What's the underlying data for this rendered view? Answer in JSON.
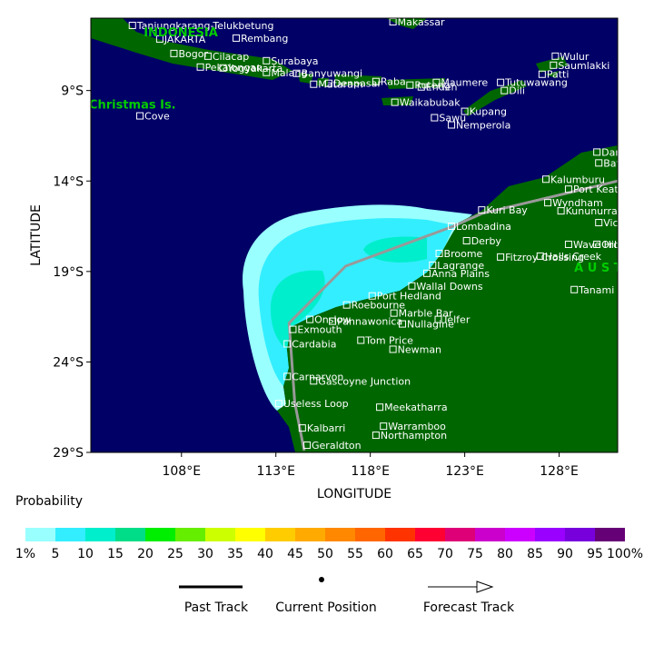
{
  "map": {
    "legend_title": "Probability",
    "xlabel": "LONGITUDE",
    "ylabel": "LATITUDE",
    "xlim": [
      103.2,
      131.1
    ],
    "ylim": [
      -29,
      -5
    ],
    "xticks": [
      {
        "value": 108,
        "label": "108°E"
      },
      {
        "value": 113,
        "label": "113°E"
      },
      {
        "value": 118,
        "label": "118°E"
      },
      {
        "value": 123,
        "label": "123°E"
      },
      {
        "value": 128,
        "label": "128°E"
      }
    ],
    "yticks": [
      {
        "value": -9,
        "label": "9°S"
      },
      {
        "value": -14,
        "label": "14°S"
      },
      {
        "value": -19,
        "label": "19°S"
      },
      {
        "value": -24,
        "label": "24°S"
      },
      {
        "value": -29,
        "label": "29°S"
      }
    ],
    "regions": [
      {
        "name": "Christmas Is.",
        "lon": 103.1,
        "lat": -10.0
      },
      {
        "name": "INDONESIA",
        "lon": 106.0,
        "lat": -6.0
      },
      {
        "name": "A U S T R A L I A",
        "lon": 128.8,
        "lat": -19.0
      }
    ],
    "places": [
      {
        "name": "Tanjungkarang-Telukbetung",
        "lon": 105.4,
        "lat": -5.4
      },
      {
        "name": "JAKARTA",
        "lon": 106.85,
        "lat": -6.15
      },
      {
        "name": "Bogor",
        "lon": 107.6,
        "lat": -6.95
      },
      {
        "name": "Rembang",
        "lon": 110.9,
        "lat": -6.1
      },
      {
        "name": "Cilacap",
        "lon": 109.4,
        "lat": -7.1
      },
      {
        "name": "Pekalongan",
        "lon": 109.0,
        "lat": -7.7
      },
      {
        "name": "Surabaya",
        "lon": 112.5,
        "lat": -7.35
      },
      {
        "name": "Malang",
        "lon": 112.5,
        "lat": -8.0
      },
      {
        "name": "Yogyakarta",
        "lon": 110.2,
        "lat": -7.75
      },
      {
        "name": "Banyuwangi",
        "lon": 114.1,
        "lat": -8.05
      },
      {
        "name": "Makassar",
        "lon": 119.2,
        "lat": -5.2
      },
      {
        "name": "Mataram",
        "lon": 115.0,
        "lat": -8.65
      },
      {
        "name": "Denpasar",
        "lon": 115.8,
        "lat": -8.6
      },
      {
        "name": "Raba",
        "lon": 118.3,
        "lat": -8.5
      },
      {
        "name": "Maumere",
        "lon": 121.5,
        "lat": -8.55
      },
      {
        "name": "Ruteng",
        "lon": 120.1,
        "lat": -8.7
      },
      {
        "name": "Endeh",
        "lon": 120.7,
        "lat": -8.8
      },
      {
        "name": "Waikabubak",
        "lon": 119.3,
        "lat": -9.65
      },
      {
        "name": "Sawu",
        "lon": 121.4,
        "lat": -10.5
      },
      {
        "name": "Kupang",
        "lon": 123.0,
        "lat": -10.15
      },
      {
        "name": "Nemperola",
        "lon": 122.3,
        "lat": -10.9
      },
      {
        "name": "Wulur",
        "lon": 127.8,
        "lat": -7.1
      },
      {
        "name": "Saumlakki",
        "lon": 127.7,
        "lat": -7.6
      },
      {
        "name": "Patti",
        "lon": 127.1,
        "lat": -8.1
      },
      {
        "name": "Tutuwawang",
        "lon": 124.9,
        "lat": -8.55
      },
      {
        "name": "Dili",
        "lon": 125.1,
        "lat": -9.0
      },
      {
        "name": "Cove",
        "lon": 105.8,
        "lat": -10.4
      },
      {
        "name": "Darwin",
        "lon": 130.0,
        "lat": -12.4
      },
      {
        "name": "Batchelor",
        "lon": 130.1,
        "lat": -13.0
      },
      {
        "name": "Kalumburu",
        "lon": 127.3,
        "lat": -13.9
      },
      {
        "name": "Port Keats",
        "lon": 128.5,
        "lat": -14.45
      },
      {
        "name": "Wyndham",
        "lon": 127.4,
        "lat": -15.2
      },
      {
        "name": "Kununurra",
        "lon": 128.1,
        "lat": -15.65
      },
      {
        "name": "Kuri Bay",
        "lon": 123.9,
        "lat": -15.6
      },
      {
        "name": "Victoria R. Downs",
        "lon": 130.1,
        "lat": -16.3
      },
      {
        "name": "Lombadina",
        "lon": 122.3,
        "lat": -16.5
      },
      {
        "name": "Derby",
        "lon": 123.1,
        "lat": -17.3
      },
      {
        "name": "Ord River",
        "lon": 130.0,
        "lat": -17.5
      },
      {
        "name": "Wave Hill",
        "lon": 128.5,
        "lat": -17.5
      },
      {
        "name": "Broome",
        "lon": 121.65,
        "lat": -18.0
      },
      {
        "name": "Halls Creek",
        "lon": 127.0,
        "lat": -18.15
      },
      {
        "name": "Lagrange",
        "lon": 121.3,
        "lat": -18.65
      },
      {
        "name": "Fitzroy Crossing",
        "lon": 124.9,
        "lat": -18.2
      },
      {
        "name": "Anna Plains",
        "lon": 121.0,
        "lat": -19.1
      },
      {
        "name": "Wallal Downs",
        "lon": 120.2,
        "lat": -19.8
      },
      {
        "name": "Tanami",
        "lon": 128.8,
        "lat": -20.0
      },
      {
        "name": "Port Hedland",
        "lon": 118.1,
        "lat": -20.35
      },
      {
        "name": "Roebourne",
        "lon": 116.75,
        "lat": -20.85
      },
      {
        "name": "Onslow",
        "lon": 114.8,
        "lat": -21.65
      },
      {
        "name": "Marble Bar",
        "lon": 119.25,
        "lat": -21.3
      },
      {
        "name": "Pannawonica",
        "lon": 116.0,
        "lat": -21.75
      },
      {
        "name": "Telfer",
        "lon": 121.6,
        "lat": -21.65
      },
      {
        "name": "Nullagine",
        "lon": 119.7,
        "lat": -21.9
      },
      {
        "name": "Exmouth",
        "lon": 113.9,
        "lat": -22.2
      },
      {
        "name": "Cardabia",
        "lon": 113.6,
        "lat": -23.0
      },
      {
        "name": "Tom Price",
        "lon": 117.5,
        "lat": -22.8
      },
      {
        "name": "Newman",
        "lon": 119.2,
        "lat": -23.3
      },
      {
        "name": "Carnarvon",
        "lon": 113.6,
        "lat": -24.8
      },
      {
        "name": "Gascoyne Junction",
        "lon": 115.0,
        "lat": -25.05
      },
      {
        "name": "Useless Loop",
        "lon": 113.15,
        "lat": -26.3
      },
      {
        "name": "Meekatharra",
        "lon": 118.5,
        "lat": -26.5
      },
      {
        "name": "Kalbarri",
        "lon": 114.4,
        "lat": -27.65
      },
      {
        "name": "Warramboo",
        "lon": 118.7,
        "lat": -27.55
      },
      {
        "name": "Northampton",
        "lon": 118.3,
        "lat": -28.05
      },
      {
        "name": "Geraldton",
        "lon": 114.65,
        "lat": -28.6
      }
    ],
    "track": {
      "lon": [
        131.1,
        123.9,
        122.4,
        116.7,
        113.7,
        114.0,
        114.5
      ],
      "lat": [
        -14.0,
        -15.8,
        -16.5,
        -18.7,
        -21.85,
        -26.25,
        -28.9
      ]
    },
    "colorbar": {
      "colors": [
        "#99ffff",
        "#33eeff",
        "#00eecc",
        "#00dd88",
        "#00ee00",
        "#66ee00",
        "#ccff00",
        "#ffff00",
        "#ffcc00",
        "#ffaa00",
        "#ff8800",
        "#ff6600",
        "#ff3300",
        "#ff0033",
        "#dd0077",
        "#cc00cc",
        "#cc00ff",
        "#9900ff",
        "#7700dd",
        "#660077"
      ],
      "labels": [
        "1%",
        "5",
        "10",
        "15",
        "20",
        "25",
        "30",
        "35",
        "40",
        "45",
        "50",
        "55",
        "60",
        "65",
        "70",
        "75",
        "80",
        "85",
        "90",
        "95",
        "100%"
      ]
    },
    "legend_items": [
      "Past Track",
      "Current Position",
      "Forecast Track"
    ]
  }
}
